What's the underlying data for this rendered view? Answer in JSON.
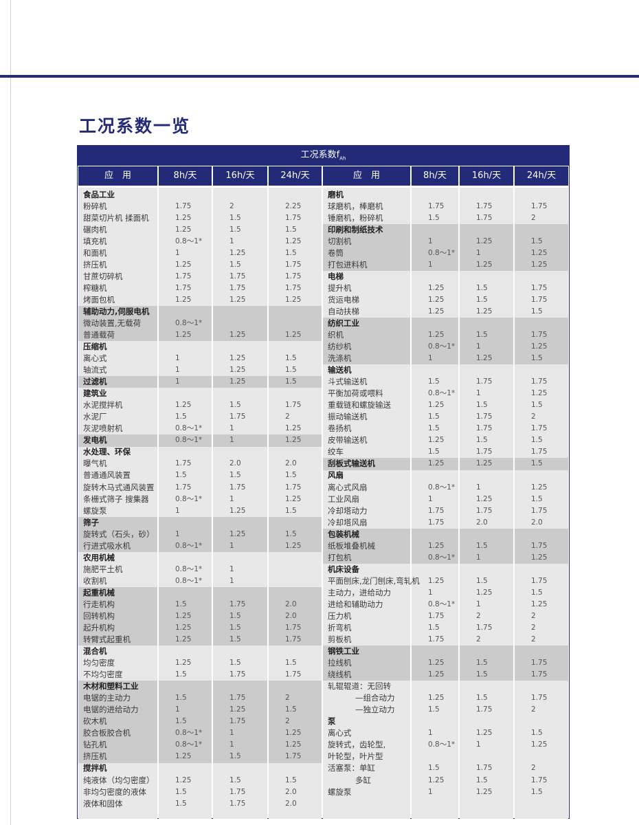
{
  "title": "工况系数一览",
  "table": {
    "caption": {
      "text": "工况系数f",
      "sub": "Ah"
    },
    "columns": [
      "应　用",
      "8h/天",
      "16h/天",
      "24h/天"
    ],
    "left": [
      {
        "label": "食品工业",
        "bold": true
      },
      {
        "label": "粉碎机",
        "values": [
          "1.75",
          "2",
          "2.25"
        ]
      },
      {
        "label": "甜菜切片机 揉面机",
        "values": [
          "1.25",
          "1.5",
          "1.75"
        ]
      },
      {
        "label": "碾肉机",
        "values": [
          "1.25",
          "1.5",
          "1.5"
        ]
      },
      {
        "label": "填充机",
        "values": [
          "0.8～1*",
          "1",
          "1.25"
        ]
      },
      {
        "label": "和面机",
        "values": [
          "1",
          "1.25",
          "1.5"
        ]
      },
      {
        "label": "挤压机",
        "values": [
          "1.25",
          "1.5",
          "1.75"
        ]
      },
      {
        "label": "甘蔗切碎机",
        "values": [
          "1.75",
          "1.75",
          "1.75"
        ]
      },
      {
        "label": "榨糖机",
        "values": [
          "1.75",
          "1.75",
          "1.75"
        ]
      },
      {
        "label": "烤面包机",
        "values": [
          "1.25",
          "1.25",
          "1.25"
        ]
      },
      {
        "label": "辅助动力,伺服电机",
        "bold": true,
        "shaded": true
      },
      {
        "label": "微动装置,无载荷",
        "values": [
          "0.8～1*"
        ],
        "shaded": true
      },
      {
        "label": "普通载荷",
        "values": [
          "1.25",
          "1.25",
          "1.25"
        ],
        "shaded": true
      },
      {
        "label": "压缩机",
        "bold": true
      },
      {
        "label": "离心式",
        "values": [
          "1",
          "1.25",
          "1.5"
        ]
      },
      {
        "label": "轴流式",
        "values": [
          "1",
          "1.25",
          "1.5"
        ]
      },
      {
        "label": "过滤机",
        "values": [
          "1",
          "1.25",
          "1.5"
        ],
        "bold": true,
        "shaded": true
      },
      {
        "label": "建筑业",
        "bold": true
      },
      {
        "label": "水泥搅拌机",
        "values": [
          "1.25",
          "1.5",
          "1.75"
        ]
      },
      {
        "label": "水泥厂",
        "values": [
          "1.5",
          "1.75",
          "2"
        ]
      },
      {
        "label": "灰泥喷射机",
        "values": [
          "0.8～1*",
          "1",
          "1.25"
        ]
      },
      {
        "label": "发电机",
        "values": [
          "0.8～1*",
          "1",
          "1.25"
        ],
        "bold": true,
        "shaded": true
      },
      {
        "label": "水处理、环保",
        "bold": true
      },
      {
        "label": "曝气机",
        "values": [
          "1.75",
          "2.0",
          "2.0"
        ]
      },
      {
        "label": "普通通风装置",
        "values": [
          "1.5",
          "1.5",
          "1.5"
        ]
      },
      {
        "label": "旋转木马式通风装置",
        "values": [
          "1.75",
          "1.75",
          "1.75"
        ]
      },
      {
        "label": "条栅式筛子 搜集器",
        "values": [
          "0.8～1*",
          "1",
          "1.25"
        ]
      },
      {
        "label": "螺旋泵",
        "values": [
          "1",
          "1.25",
          "1.5"
        ]
      },
      {
        "label": "筛子",
        "bold": true,
        "shaded": true
      },
      {
        "label": "旋转式（石头，砂）",
        "values": [
          "1",
          "1.25",
          "1.5"
        ],
        "shaded": true
      },
      {
        "label": "行进式吸水机",
        "values": [
          "0.8～1*",
          "1",
          "1.25"
        ],
        "shaded": true
      },
      {
        "label": "农用机械",
        "bold": true
      },
      {
        "label": "施肥平土机",
        "values": [
          "0.8～1*",
          "1"
        ]
      },
      {
        "label": "收割机",
        "values": [
          "0.8～1*",
          "1"
        ]
      },
      {
        "label": "起重机械",
        "bold": true,
        "shaded": true
      },
      {
        "label": "行走机构",
        "values": [
          "1.5",
          "1.75",
          "2.0"
        ],
        "shaded": true
      },
      {
        "label": "回转机构",
        "values": [
          "1.25",
          "1.5",
          "2.0"
        ],
        "shaded": true
      },
      {
        "label": "起升机构",
        "values": [
          "1.25",
          "1.5",
          "1.75"
        ],
        "shaded": true
      },
      {
        "label": "转臂式起重机",
        "values": [
          "1.25",
          "1.5",
          "1.75"
        ],
        "shaded": true
      },
      {
        "label": "混合机",
        "bold": true
      },
      {
        "label": "均匀密度",
        "values": [
          "1.25",
          "1.5",
          "1.5"
        ]
      },
      {
        "label": "不均匀密度",
        "values": [
          "1.5",
          "1.75",
          "1.75"
        ]
      },
      {
        "label": "木材和塑料工业",
        "bold": true,
        "shaded": true
      },
      {
        "label": "电锯的主动力",
        "values": [
          "1.5",
          "1.75",
          "2"
        ],
        "shaded": true
      },
      {
        "label": "电锯的进给动力",
        "values": [
          "1",
          "1.25",
          "1.5"
        ],
        "shaded": true
      },
      {
        "label": "砍木机",
        "values": [
          "1.5",
          "1.75",
          "2"
        ],
        "shaded": true
      },
      {
        "label": "胶合板胶合机",
        "values": [
          "0.8～1*",
          "1",
          "1.25"
        ],
        "shaded": true
      },
      {
        "label": "钻孔机",
        "values": [
          "0.8～1*",
          "1",
          "1.25"
        ],
        "shaded": true
      },
      {
        "label": "挤压机",
        "values": [
          "1.25",
          "1.5",
          "1.75"
        ],
        "shaded": true
      },
      {
        "label": "搅拌机",
        "bold": true
      },
      {
        "label": "纯液体（均匀密度）",
        "values": [
          "1.25",
          "1.5",
          "1.5"
        ]
      },
      {
        "label": "非均匀密度的液体",
        "values": [
          "1.5",
          "1.75",
          "2.0"
        ]
      },
      {
        "label": "液体和固体",
        "values": [
          "1.5",
          "1.75",
          "2.0"
        ]
      }
    ],
    "right": [
      {
        "label": "磨机",
        "bold": true
      },
      {
        "label": "球磨机，棒磨机",
        "values": [
          "1.75",
          "1.75",
          "1.75"
        ]
      },
      {
        "label": "锤磨机，粉碎机",
        "values": [
          "1.5",
          "1.75",
          "2"
        ]
      },
      {
        "label": "印刷和制纸技术",
        "bold": true,
        "shaded": true
      },
      {
        "label": "切割机",
        "values": [
          "1",
          "1.25",
          "1.5"
        ],
        "shaded": true
      },
      {
        "label": "卷筒",
        "values": [
          "0.8～1*",
          "1",
          "1.25"
        ],
        "shaded": true
      },
      {
        "label": "打包进料机",
        "values": [
          "1",
          "1.25",
          "1.25"
        ],
        "shaded": true
      },
      {
        "label": "电梯",
        "bold": true
      },
      {
        "label": "提升机",
        "values": [
          "1.25",
          "1.5",
          "1.75"
        ]
      },
      {
        "label": "货运电梯",
        "values": [
          "1.25",
          "1.5",
          "1.75"
        ]
      },
      {
        "label": "自动扶梯",
        "values": [
          "1.25",
          "1.25",
          "1.5"
        ]
      },
      {
        "label": "纺织工业",
        "bold": true,
        "shaded": true
      },
      {
        "label": "织机",
        "values": [
          "1.25",
          "1.5",
          "1.75"
        ],
        "shaded": true
      },
      {
        "label": "纺纱机",
        "values": [
          "0.8～1*",
          "1",
          "1.25"
        ],
        "shaded": true
      },
      {
        "label": "洗涤机",
        "values": [
          "1",
          "1.25",
          "1.5"
        ],
        "shaded": true
      },
      {
        "label": "输送机",
        "bold": true
      },
      {
        "label": "斗式输送机",
        "values": [
          "1.5",
          "1.75",
          "1.75"
        ]
      },
      {
        "label": "平衡加荷或喂料",
        "values": [
          "0.8～1*",
          "1",
          "1.25"
        ]
      },
      {
        "label": "重载链和螺旋输送",
        "values": [
          "1.25",
          "1.5",
          "1.5"
        ]
      },
      {
        "label": "振动输送机",
        "values": [
          "1.5",
          "1.75",
          "2"
        ]
      },
      {
        "label": "卷扬机",
        "values": [
          "1.5",
          "1.75",
          "1.75"
        ]
      },
      {
        "label": "皮带输送机",
        "values": [
          "1.25",
          "1.5",
          "1.5"
        ]
      },
      {
        "label": "绞车",
        "values": [
          "1.5",
          "1.75",
          "1.75"
        ]
      },
      {
        "label": "刮板式输送机",
        "values": [
          "1.25",
          "1.25",
          "1.5"
        ],
        "bold": true,
        "shaded": true
      },
      {
        "label": "风扇",
        "bold": true
      },
      {
        "label": "离心式风扇",
        "values": [
          "0.8～1*",
          "1",
          "1.25"
        ]
      },
      {
        "label": "工业风扇",
        "values": [
          "1",
          "1.25",
          "1.5"
        ]
      },
      {
        "label": "冷却塔动力",
        "values": [
          "1.75",
          "1.75",
          "1.75"
        ]
      },
      {
        "label": "冷却塔风扇",
        "values": [
          "1.75",
          "2.0",
          "2.0"
        ]
      },
      {
        "label": "包装机械",
        "bold": true,
        "shaded": true
      },
      {
        "label": "纸板堆叠机械",
        "values": [
          "1.25",
          "1.5",
          "1.75"
        ],
        "shaded": true
      },
      {
        "label": "打包机",
        "values": [
          "0.8～1*",
          "1",
          "1.25"
        ],
        "shaded": true
      },
      {
        "label": "机床设备",
        "bold": true
      },
      {
        "label": "平面刨床,龙门刨床,弯轧机",
        "values": [
          "1.25",
          "1.5",
          "1.75"
        ]
      },
      {
        "label": "主动力，进给动力",
        "values": [
          "1",
          "1.25",
          "1.5"
        ]
      },
      {
        "label": "进给和辅助动力",
        "values": [
          "0.8～1*",
          "1",
          "1.25"
        ]
      },
      {
        "label": "压力机",
        "values": [
          "1.75",
          "2",
          "2"
        ]
      },
      {
        "label": "折弯机",
        "values": [
          "1.5",
          "1.75",
          "2"
        ]
      },
      {
        "label": "剪板机",
        "values": [
          "1.75",
          "2",
          "2"
        ]
      },
      {
        "label": "钢铁工业",
        "bold": true,
        "shaded": true
      },
      {
        "label": "拉线机",
        "values": [
          "1.25",
          "1.5",
          "1.75"
        ],
        "shaded": true
      },
      {
        "label": "绕线机",
        "values": [
          "1.25",
          "1.5",
          "1.75"
        ],
        "shaded": true
      },
      {
        "label": "轧辊辊道：无回转"
      },
      {
        "label": "—组合动力",
        "values": [
          "1.25",
          "1.5",
          "1.75"
        ],
        "indent": true
      },
      {
        "label": "—独立动力",
        "values": [
          "1.5",
          "1.75",
          "2"
        ],
        "indent": true
      },
      {
        "label": "泵",
        "bold": true
      },
      {
        "label": "离心式",
        "values": [
          "1",
          "1.25",
          "1.5"
        ]
      },
      {
        "label": "旋转式，齿轮型,",
        "values": [
          "0.8～1*",
          "1",
          "1.25"
        ]
      },
      {
        "label": "叶轮型，叶片型"
      },
      {
        "label": "活塞泵：单缸",
        "values": [
          "1.5",
          "1.75",
          "2"
        ]
      },
      {
        "label": "多缸",
        "values": [
          "1.25",
          "1.5",
          "1.75"
        ],
        "indent": true
      },
      {
        "label": "螺旋泵",
        "values": [
          "1",
          "1.25",
          "1.5"
        ]
      }
    ]
  }
}
